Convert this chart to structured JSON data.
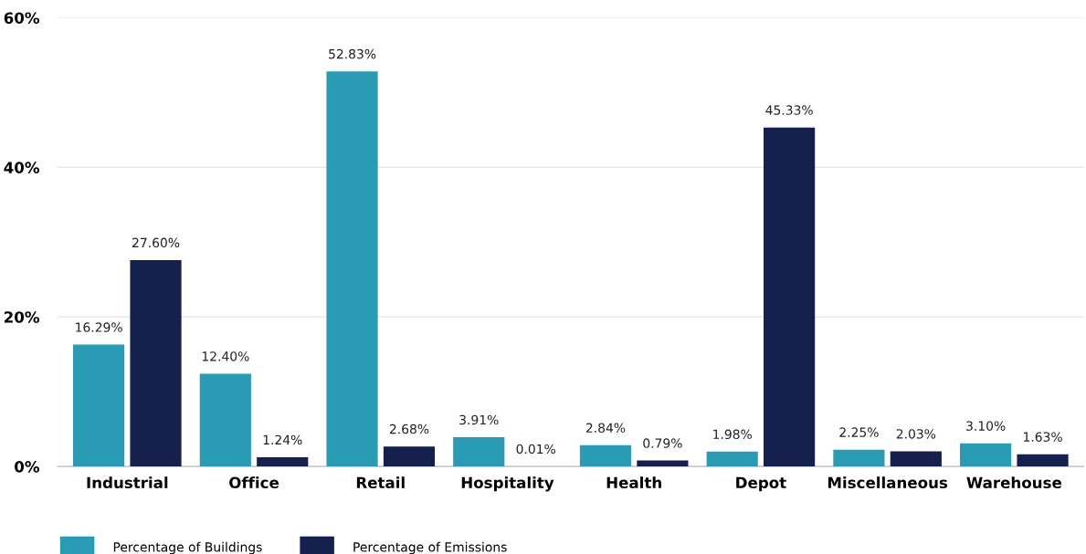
{
  "chart_data": {
    "type": "bar",
    "categories": [
      "Industrial",
      "Office",
      "Retail",
      "Hospitality",
      "Health",
      "Depot",
      "Miscellaneous",
      "Warehouse"
    ],
    "series": [
      {
        "name": "Percentage of Buildings",
        "color": "#2a9bb5",
        "values": [
          16.29,
          12.4,
          52.83,
          3.91,
          2.84,
          1.98,
          2.25,
          3.1
        ],
        "value_labels": [
          "16.29%",
          "12.40%",
          "52.83%",
          "3.91%",
          "2.84%",
          "1.98%",
          "2.25%",
          "3.10%"
        ]
      },
      {
        "name": "Percentage of Emissions",
        "color": "#16204e",
        "values": [
          27.6,
          1.24,
          2.68,
          0.01,
          0.79,
          45.33,
          2.03,
          1.63
        ],
        "value_labels": [
          "27.60%",
          "1.24%",
          "2.68%",
          "0.01%",
          "0.79%",
          "45.33%",
          "2.03%",
          "1.63%"
        ]
      }
    ],
    "ylim": [
      0,
      60
    ],
    "yticks": [
      {
        "value": 0,
        "label": "0%"
      },
      {
        "value": 20,
        "label": "20%"
      },
      {
        "value": 40,
        "label": "40%"
      },
      {
        "value": 60,
        "label": "60%"
      }
    ],
    "grid": "y",
    "legend": "bottom left"
  }
}
